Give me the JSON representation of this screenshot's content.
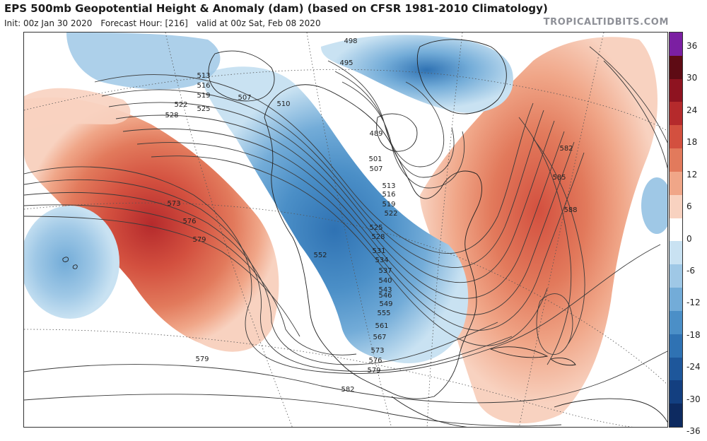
{
  "header": {
    "title": "EPS 500mb Geopotential Height & Anomaly (dam) (based on CFSR 1981-2010 Climatology)",
    "init": "Init: 00z Jan 30 2020",
    "forecast_hour": "Forecast Hour: [216]",
    "valid": "valid at 00z Sat, Feb 08 2020",
    "brand": "TROPICALTIDBITS.COM"
  },
  "colorbar": {
    "ticks": [
      "36",
      "30",
      "24",
      "18",
      "12",
      "6",
      "0",
      "-6",
      "-12",
      "-18",
      "-24",
      "-30",
      "-36"
    ],
    "colors": [
      "#7b1fa2",
      "#5e0b14",
      "#8e1320",
      "#b52a2c",
      "#d3503f",
      "#e27a5c",
      "#f0a688",
      "#f8d2c0",
      "#ffffff",
      "#c9e2f2",
      "#9fc8e6",
      "#73acd8",
      "#4b8fc7",
      "#2f72b3",
      "#1e579b",
      "#133f80",
      "#0d2a60"
    ]
  },
  "map": {
    "contour_labels": [
      "498",
      "495",
      "489",
      "501",
      "507",
      "510",
      "513",
      "516",
      "519",
      "522",
      "525",
      "528",
      "507",
      "513",
      "516",
      "519",
      "522",
      "525",
      "528",
      "531",
      "534",
      "537",
      "540",
      "543",
      "546",
      "549",
      "552",
      "555",
      "561",
      "567",
      "573",
      "576",
      "579",
      "579",
      "582",
      "579",
      "573",
      "576",
      "582",
      "585",
      "588"
    ]
  }
}
